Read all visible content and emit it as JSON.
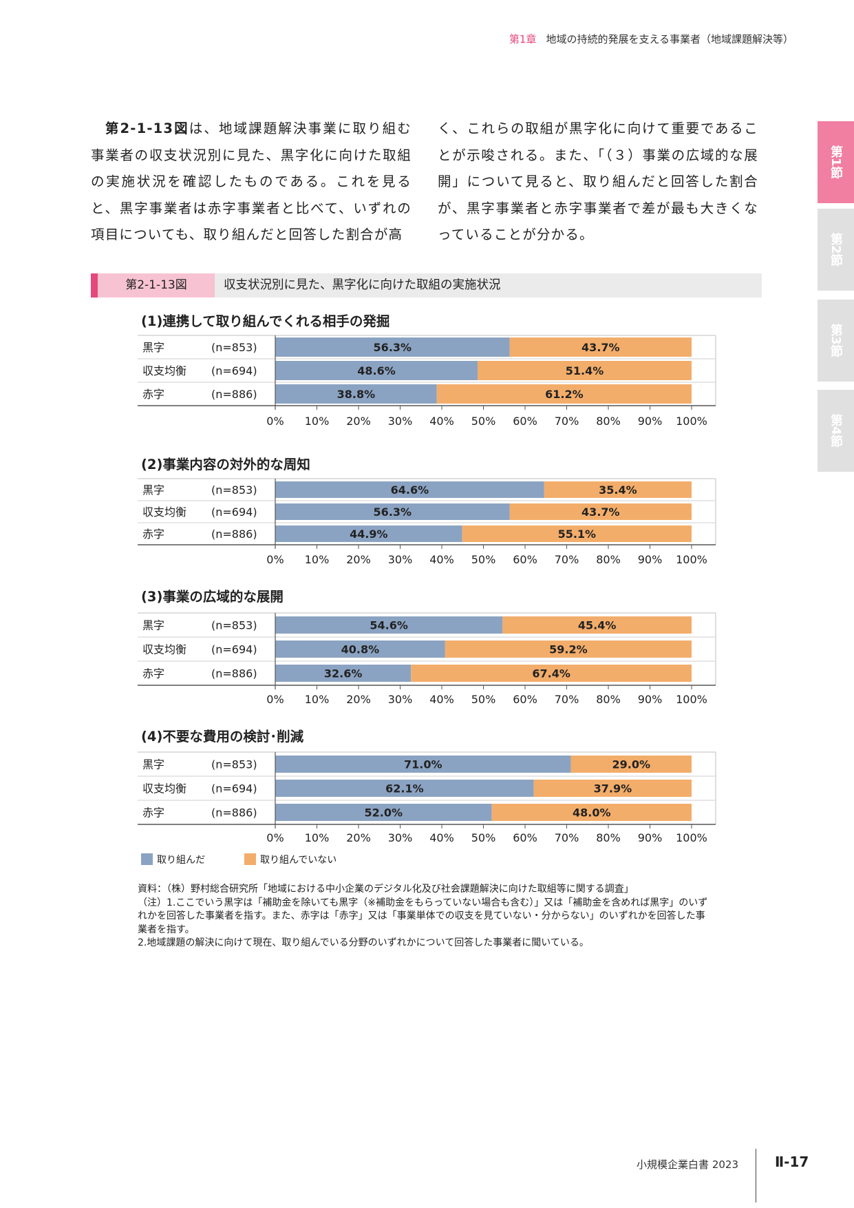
{
  "header": {
    "chapter": "第1章",
    "title": "地域の持続的発展を支える事業者（地域課題解決等）"
  },
  "intro": {
    "fig_ref": "第2-1-13図",
    "left": "は、地域課題解決事業に取り組む事業者の収支状況別に見た、黒字化に向けた取組の実施状況を確認したものである。これを見ると、黒字事業者は赤字事業者と比べて、いずれの項目についても、取り組んだと回答した割合が高",
    "right": "く、これらの取組が黒字化に向けて重要であることが示唆される。また、「（３）事業の広域的な展開」について見ると、取り組んだと回答した割合が、黒字事業者と赤字事業者で差が最も大きくなっていることが分かる。"
  },
  "side_tabs": [
    {
      "label": "第1節",
      "active": true
    },
    {
      "label": "第2節",
      "active": false
    },
    {
      "label": "第3節",
      "active": false
    },
    {
      "label": "第4節",
      "active": false
    }
  ],
  "figure": {
    "number": "第2-1-13図",
    "title": "収支状況別に見た、黒字化に向けた取組の実施状況"
  },
  "colors": {
    "did": "#8ba3c2",
    "not": "#f3ad6a",
    "accent": "#e5487a"
  },
  "chart_data": [
    {
      "type": "bar",
      "orientation": "horizontal-stacked-100",
      "title": "(1)連携して取り組んでくれる相手の発掘",
      "categories": [
        "黒字",
        "収支均衡",
        "赤字"
      ],
      "n": [
        "(n=853)",
        "(n=694)",
        "(n=886)"
      ],
      "series": [
        {
          "name": "取り組んだ",
          "values": [
            56.3,
            48.6,
            38.8
          ],
          "labels": [
            "56.3%",
            "48.6%",
            "38.8%"
          ]
        },
        {
          "name": "取り組んでいない",
          "values": [
            43.7,
            51.4,
            61.2
          ],
          "labels": [
            "43.7%",
            "51.4%",
            "61.2%"
          ]
        }
      ],
      "xlim": [
        0,
        100
      ],
      "xticks": [
        "0%",
        "10%",
        "20%",
        "30%",
        "40%",
        "50%",
        "60%",
        "70%",
        "80%",
        "90%",
        "100%"
      ]
    },
    {
      "type": "bar",
      "orientation": "horizontal-stacked-100",
      "title": "(2)事業内容の対外的な周知",
      "categories": [
        "黒字",
        "収支均衡",
        "赤字"
      ],
      "n": [
        "(n=853)",
        "(n=694)",
        "(n=886)"
      ],
      "series": [
        {
          "name": "取り組んだ",
          "values": [
            64.6,
            56.3,
            44.9
          ],
          "labels": [
            "64.6%",
            "56.3%",
            "44.9%"
          ]
        },
        {
          "name": "取り組んでいない",
          "values": [
            35.4,
            43.7,
            55.1
          ],
          "labels": [
            "35.4%",
            "43.7%",
            "55.1%"
          ]
        }
      ],
      "xlim": [
        0,
        100
      ],
      "xticks": [
        "0%",
        "10%",
        "20%",
        "30%",
        "40%",
        "50%",
        "60%",
        "70%",
        "80%",
        "90%",
        "100%"
      ]
    },
    {
      "type": "bar",
      "orientation": "horizontal-stacked-100",
      "title": "(3)事業の広域的な展開",
      "categories": [
        "黒字",
        "収支均衡",
        "赤字"
      ],
      "n": [
        "(n=853)",
        "(n=694)",
        "(n=886)"
      ],
      "series": [
        {
          "name": "取り組んだ",
          "values": [
            54.6,
            40.8,
            32.6
          ],
          "labels": [
            "54.6%",
            "40.8%",
            "32.6%"
          ]
        },
        {
          "name": "取り組んでいない",
          "values": [
            45.4,
            59.2,
            67.4
          ],
          "labels": [
            "45.4%",
            "59.2%",
            "67.4%"
          ]
        }
      ],
      "xlim": [
        0,
        100
      ],
      "xticks": [
        "0%",
        "10%",
        "20%",
        "30%",
        "40%",
        "50%",
        "60%",
        "70%",
        "80%",
        "90%",
        "100%"
      ]
    },
    {
      "type": "bar",
      "orientation": "horizontal-stacked-100",
      "title": "(4)不要な費用の検討･削減",
      "categories": [
        "黒字",
        "収支均衡",
        "赤字"
      ],
      "n": [
        "(n=853)",
        "(n=694)",
        "(n=886)"
      ],
      "series": [
        {
          "name": "取り組んだ",
          "values": [
            71.0,
            62.1,
            52.0
          ],
          "labels": [
            "71.0%",
            "62.1%",
            "52.0%"
          ]
        },
        {
          "name": "取り組んでいない",
          "values": [
            29.0,
            37.9,
            48.0
          ],
          "labels": [
            "29.0%",
            "37.9%",
            "48.0%"
          ]
        }
      ],
      "xlim": [
        0,
        100
      ],
      "xticks": [
        "0%",
        "10%",
        "20%",
        "30%",
        "40%",
        "50%",
        "60%",
        "70%",
        "80%",
        "90%",
        "100%"
      ]
    }
  ],
  "legend": [
    "取り組んだ",
    "取り組んでいない"
  ],
  "notes": [
    "資料：（株）野村総合研究所「地域における中小企業のデジタル化及び社会課題解決に向けた取組等に関する調査」",
    "（注）1.ここでいう黒字は「補助金を除いても黒字（※補助金をもらっていない場合も含む）」又は「補助金を含めれば黒字」のいずれかを回答した事業者を指す。また、赤字は「赤字」又は「事業単体での収支を見ていない・分からない」のいずれかを回答した事業者を指す。",
    "2.地域課題の解決に向けて現在、取り組んでいる分野のいずれかについて回答した事業者に聞いている。"
  ],
  "footer": {
    "text": "小規模企業白書 2023",
    "page": "Ⅱ-17"
  }
}
